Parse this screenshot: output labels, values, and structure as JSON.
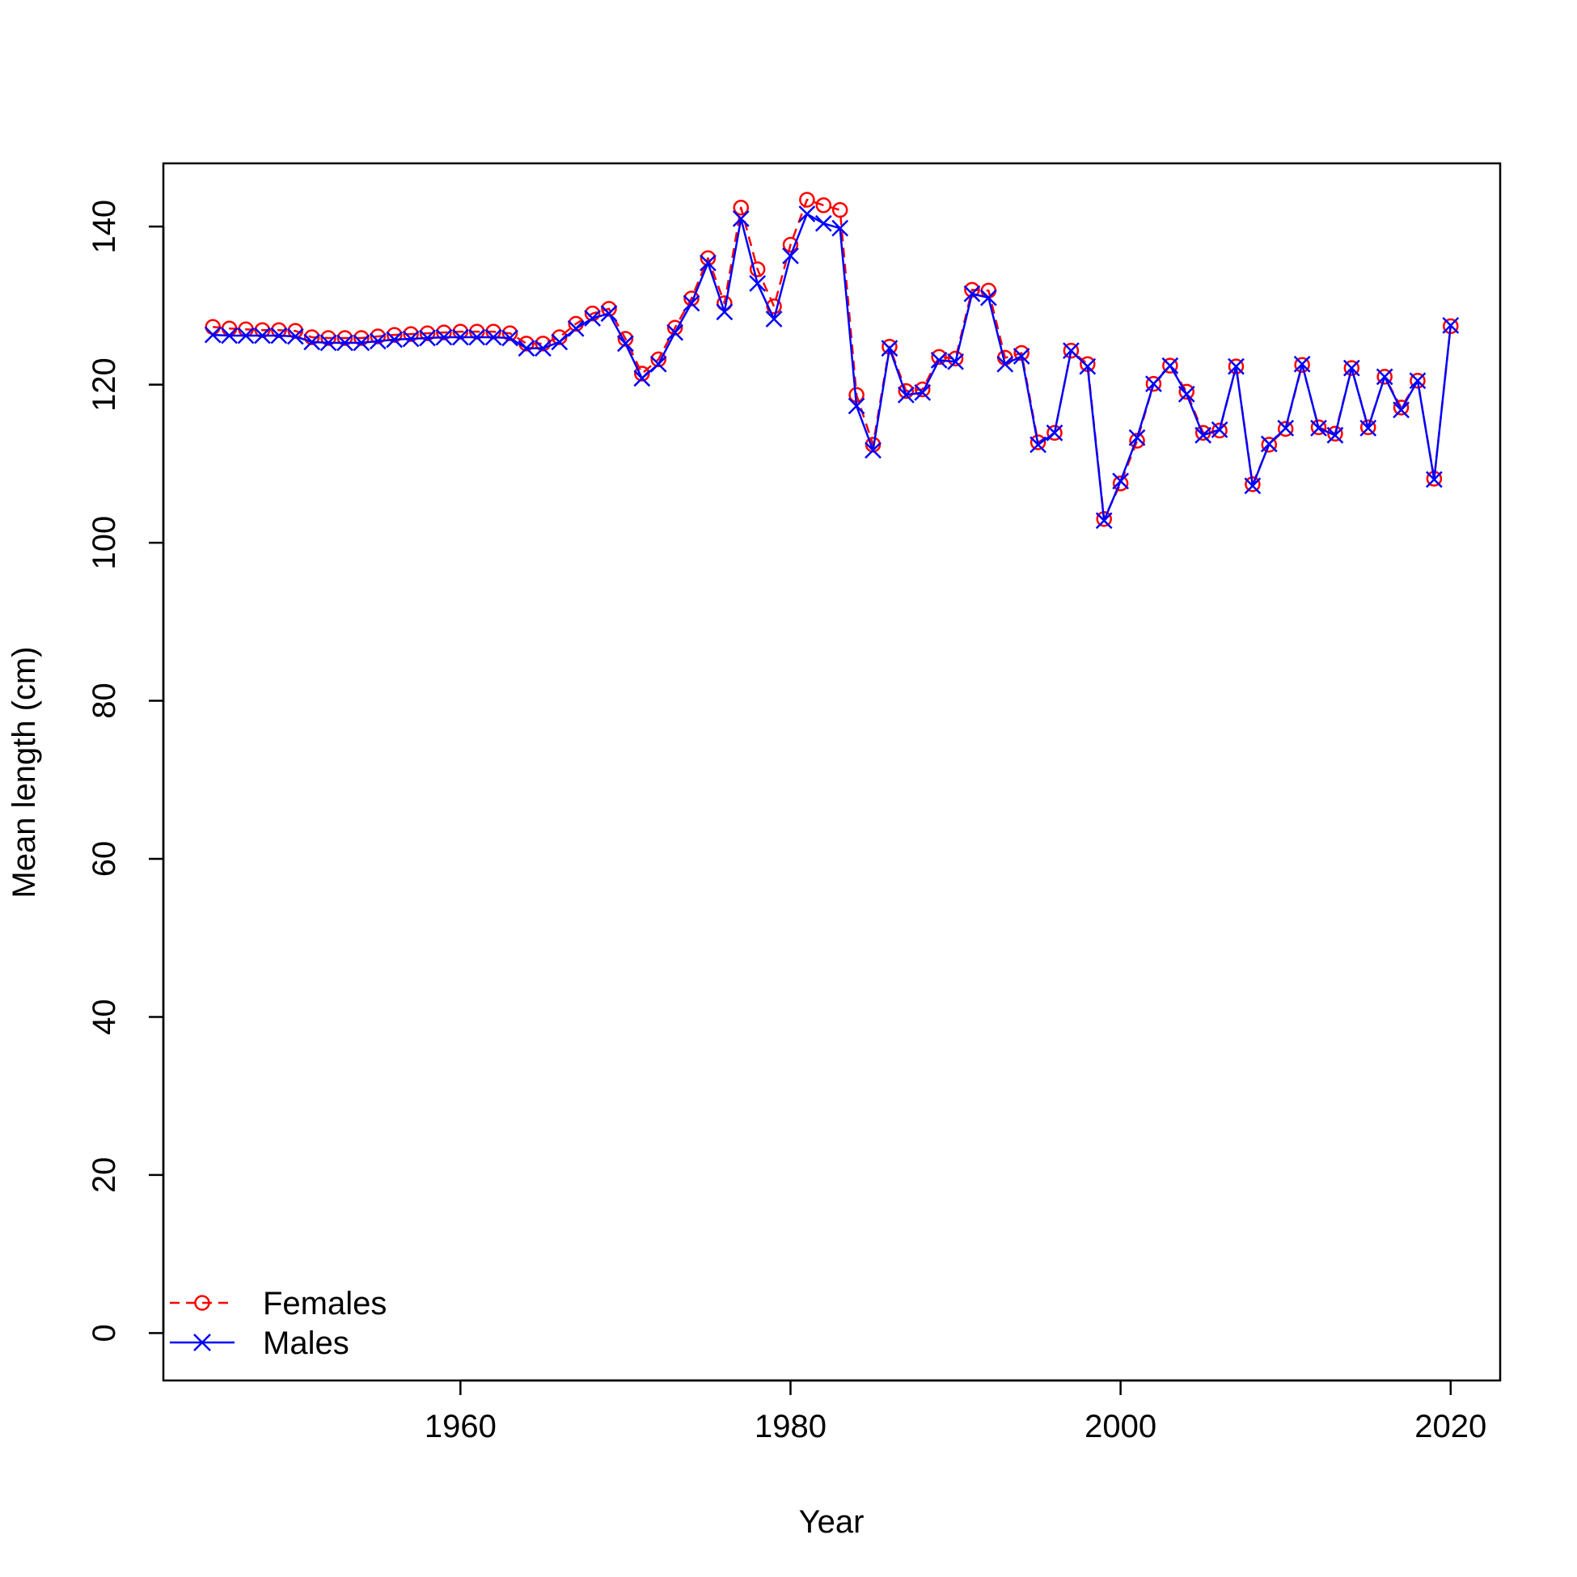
{
  "chart_data": {
    "type": "line",
    "title": "",
    "xlabel": "Year",
    "ylabel": "Mean length (cm)",
    "xlim": [
      1942,
      2023
    ],
    "ylim": [
      -6,
      148
    ],
    "xticks": [
      1960,
      1980,
      2000,
      2020
    ],
    "yticks": [
      0,
      20,
      40,
      60,
      80,
      100,
      120,
      140
    ],
    "grid": false,
    "legend": {
      "position": "bottom-left"
    },
    "x": [
      1945,
      1946,
      1947,
      1948,
      1949,
      1950,
      1951,
      1952,
      1953,
      1954,
      1955,
      1956,
      1957,
      1958,
      1959,
      1960,
      1961,
      1962,
      1963,
      1964,
      1965,
      1966,
      1967,
      1968,
      1969,
      1970,
      1971,
      1972,
      1973,
      1974,
      1975,
      1976,
      1977,
      1978,
      1979,
      1980,
      1981,
      1982,
      1983,
      1984,
      1985,
      1986,
      1987,
      1988,
      1989,
      1990,
      1991,
      1992,
      1993,
      1994,
      1995,
      1996,
      1997,
      1998,
      1999,
      2000,
      2001,
      2002,
      2003,
      2004,
      2005,
      2006,
      2007,
      2008,
      2009,
      2010,
      2011,
      2012,
      2013,
      2014,
      2015,
      2016,
      2017,
      2018,
      2019,
      2020
    ],
    "series": [
      {
        "name": "Females",
        "color": "#ff0000",
        "line_style": "dashed",
        "marker": "open-circle",
        "values": [
          127.3,
          127.1,
          127.0,
          126.9,
          126.9,
          126.8,
          126.0,
          125.9,
          125.9,
          125.9,
          126.1,
          126.3,
          126.4,
          126.5,
          126.6,
          126.7,
          126.7,
          126.7,
          126.5,
          125.2,
          125.2,
          126.0,
          127.7,
          129.0,
          129.6,
          125.8,
          121.4,
          123.2,
          127.2,
          130.9,
          136.0,
          130.3,
          142.4,
          134.6,
          129.9,
          137.7,
          143.4,
          142.7,
          142.1,
          118.7,
          112.4,
          124.8,
          119.2,
          119.4,
          123.5,
          123.3,
          132.0,
          131.9,
          123.4,
          124.0,
          112.7,
          113.9,
          124.3,
          122.6,
          103.0,
          107.5,
          112.9,
          120.1,
          122.4,
          119.1,
          113.9,
          114.2,
          122.3,
          107.4,
          112.4,
          114.4,
          122.5,
          114.6,
          113.8,
          122.1,
          114.6,
          121.0,
          117.1,
          120.5,
          108.1,
          127.4
        ]
      },
      {
        "name": "Males",
        "color": "#0000ff",
        "line_style": "solid",
        "marker": "x",
        "values": [
          126.3,
          126.2,
          126.2,
          126.2,
          126.2,
          126.1,
          125.4,
          125.3,
          125.3,
          125.3,
          125.5,
          125.7,
          125.8,
          125.9,
          126.0,
          126.0,
          126.0,
          126.0,
          125.9,
          124.6,
          124.6,
          125.4,
          127.1,
          128.4,
          129.0,
          125.2,
          120.8,
          122.6,
          126.6,
          130.3,
          135.4,
          129.2,
          141.0,
          132.8,
          128.3,
          136.3,
          141.6,
          140.4,
          139.8,
          117.3,
          111.7,
          124.6,
          118.7,
          119.0,
          123.1,
          122.9,
          131.5,
          131.0,
          122.6,
          123.6,
          112.4,
          113.9,
          124.3,
          122.3,
          102.8,
          107.8,
          113.3,
          120.1,
          122.4,
          118.8,
          113.6,
          114.3,
          122.3,
          107.2,
          112.5,
          114.5,
          122.6,
          114.5,
          113.6,
          122.1,
          114.5,
          121.0,
          116.8,
          120.5,
          108.0,
          127.5
        ]
      }
    ]
  }
}
